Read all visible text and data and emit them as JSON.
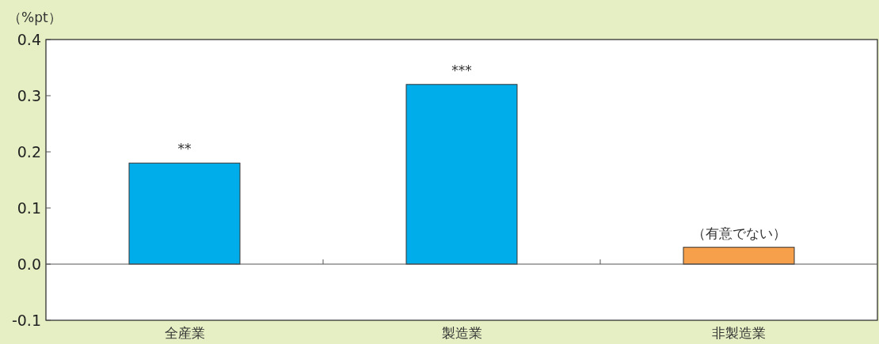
{
  "chart_data": {
    "type": "bar",
    "ylabel": "（%pt）",
    "categories": [
      "全産業",
      "製造業",
      "非製造業"
    ],
    "values": [
      0.18,
      0.32,
      0.03
    ],
    "colors": [
      "#00adeb",
      "#00adeb",
      "#f7a04b"
    ],
    "ylim": [
      -0.1,
      0.4
    ],
    "yticks": [
      {
        "value": -0.1,
        "label": "-0.1"
      },
      {
        "value": 0,
        "label": "0.0"
      },
      0.1,
      0.2,
      0.3,
      0.4
    ],
    "annotations": [
      {
        "text": "**",
        "x": "全産業",
        "y": 0.18
      },
      {
        "text": "***",
        "x": "製造業",
        "y": 0.32
      },
      {
        "text": "（有意でない）",
        "x": "非製造業",
        "y": 0.03
      }
    ]
  }
}
